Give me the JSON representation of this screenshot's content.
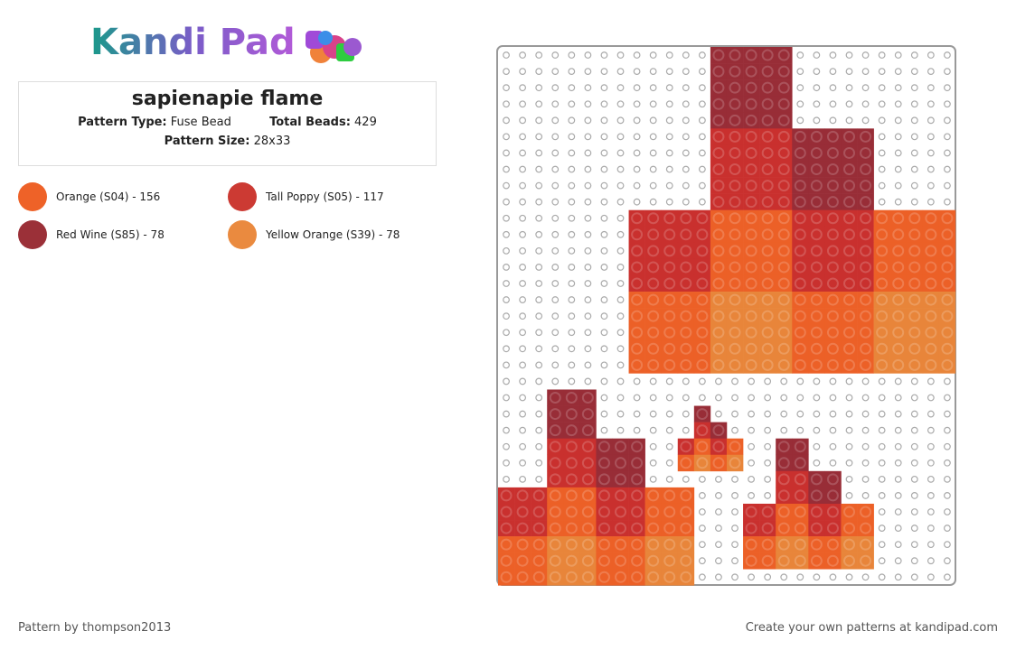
{
  "header": {
    "logo": "Kandi Pad"
  },
  "pattern": {
    "title": "sapienapie flame",
    "type_label": "Pattern Type:",
    "type": "Fuse Bead",
    "beads_label": "Total Beads:",
    "beads": "429",
    "size_label": "Pattern Size:",
    "size": "28x33"
  },
  "legend": [
    {
      "name": "Orange (S04) - 156",
      "color": "#ee6228"
    },
    {
      "name": "Tall Poppy (S05) - 117",
      "color": "#cc3a33"
    },
    {
      "name": "Red Wine (S85) - 78",
      "color": "#9b3038"
    },
    {
      "name": "Yellow Orange (S39) - 78",
      "color": "#ea8a3f"
    }
  ],
  "footer": {
    "left": "Pattern by thompson2013",
    "right": "Create your own patterns at kandipad.com"
  }
}
